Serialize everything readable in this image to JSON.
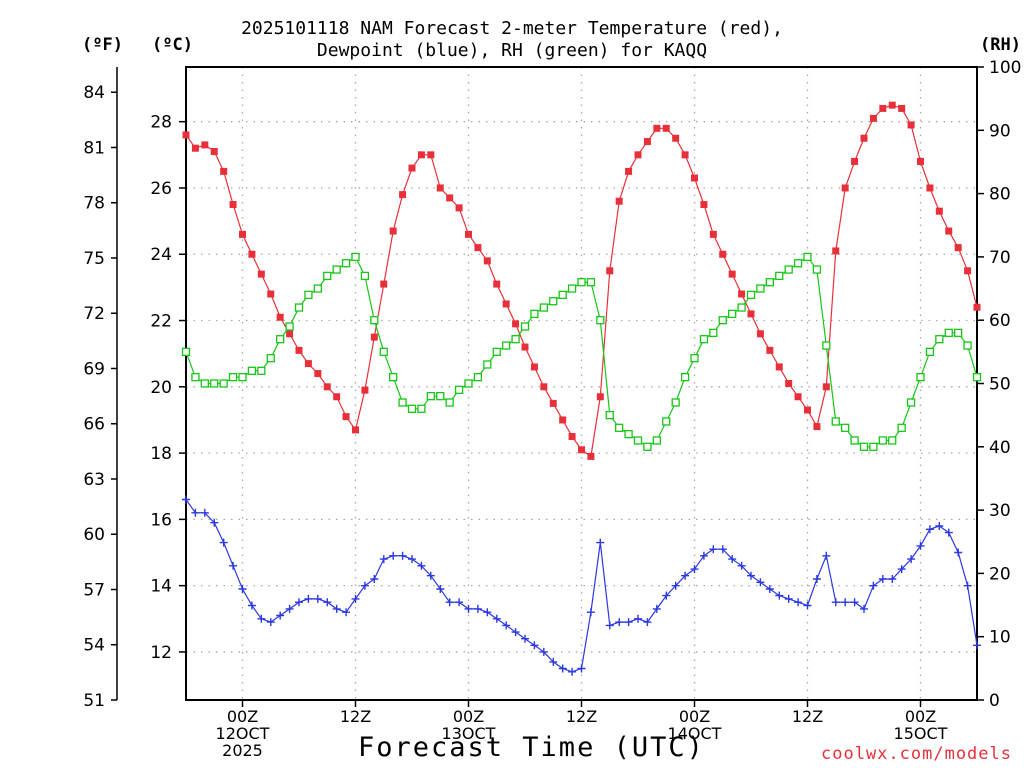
{
  "chart_data": {
    "type": "line",
    "title_lines": [
      "2025101118 NAM Forecast 2-meter Temperature (red),",
      "Dewpoint (blue), RH (green) for KAQQ"
    ],
    "xlabel": "Forecast Time (UTC)",
    "units": {
      "fahrenheit": "(ºF)",
      "celsius": "(ºC)",
      "rh": "(RH)"
    },
    "x_unit": "hours from 2025-10-11 18Z",
    "xlim": [
      0,
      84
    ],
    "x_ticks": [
      {
        "hour": 6,
        "lines": [
          "00Z",
          "12OCT",
          "2025"
        ]
      },
      {
        "hour": 18,
        "lines": [
          "12Z"
        ]
      },
      {
        "hour": 30,
        "lines": [
          "00Z",
          "13OCT"
        ]
      },
      {
        "hour": 42,
        "lines": [
          "12Z"
        ]
      },
      {
        "hour": 54,
        "lines": [
          "00Z",
          "14OCT"
        ]
      },
      {
        "hour": 66,
        "lines": [
          "12Z"
        ]
      },
      {
        "hour": 78,
        "lines": [
          "00Z",
          "15OCT"
        ]
      }
    ],
    "celsius_axis": {
      "ylim": [
        10.55,
        29.65
      ],
      "ticks": [
        12,
        14,
        16,
        18,
        20,
        22,
        24,
        26,
        28
      ]
    },
    "fahrenheit_axis": {
      "ylim": [
        51,
        85.37
      ],
      "ticks": [
        51,
        54,
        57,
        60,
        63,
        66,
        69,
        72,
        75,
        78,
        81,
        84
      ]
    },
    "rh_axis": {
      "ylim": [
        0,
        100
      ],
      "ticks": [
        0,
        10,
        20,
        30,
        40,
        50,
        60,
        70,
        80,
        90,
        100
      ]
    },
    "grid": true,
    "series": [
      {
        "name": "2-meter Temperature",
        "axis": "celsius",
        "color": "#e8303a",
        "marker": "filled-square",
        "hours": [
          0,
          1,
          2,
          3,
          4,
          5,
          6,
          7,
          8,
          9,
          10,
          11,
          12,
          13,
          14,
          15,
          16,
          17,
          18,
          19,
          20,
          21,
          22,
          23,
          24,
          25,
          26,
          27,
          28,
          29,
          30,
          31,
          32,
          33,
          34,
          35,
          36,
          37,
          38,
          39,
          40,
          41,
          42,
          43,
          44,
          45,
          46,
          47,
          48,
          49,
          50,
          51,
          52,
          53,
          54,
          55,
          56,
          57,
          58,
          59,
          60,
          61,
          62,
          63,
          64,
          65,
          66,
          67,
          68,
          69,
          70,
          71,
          72,
          73,
          74,
          75,
          76,
          77,
          78,
          79,
          80,
          81,
          82,
          83,
          84
        ],
        "values": [
          27.6,
          27.2,
          27.3,
          27.1,
          26.5,
          25.5,
          24.6,
          24.0,
          23.4,
          22.8,
          22.1,
          21.6,
          21.1,
          20.7,
          20.4,
          20.0,
          19.7,
          19.1,
          18.7,
          19.9,
          21.5,
          23.1,
          24.7,
          25.8,
          26.6,
          27.0,
          27.0,
          26.0,
          25.7,
          25.4,
          24.6,
          24.2,
          23.8,
          23.1,
          22.5,
          21.9,
          21.2,
          20.6,
          20.0,
          19.5,
          19.0,
          18.5,
          18.1,
          17.9,
          19.7,
          23.5,
          25.6,
          26.5,
          27.0,
          27.4,
          27.8,
          27.8,
          27.5,
          27.0,
          26.3,
          25.5,
          24.6,
          24.0,
          23.4,
          22.8,
          22.2,
          21.6,
          21.1,
          20.6,
          20.1,
          19.7,
          19.3,
          18.8,
          20.0,
          24.1,
          26.0,
          26.8,
          27.5,
          28.1,
          28.4,
          28.5,
          28.4,
          27.9,
          26.8,
          26.0,
          25.3,
          24.7,
          24.2,
          23.5,
          22.4
        ]
      },
      {
        "name": "Dewpoint",
        "axis": "celsius",
        "color": "#2c38e0",
        "marker": "plus",
        "hours": [
          0,
          1,
          2,
          3,
          4,
          5,
          6,
          7,
          8,
          9,
          10,
          11,
          12,
          13,
          14,
          15,
          16,
          17,
          18,
          19,
          20,
          21,
          22,
          23,
          24,
          25,
          26,
          27,
          28,
          29,
          30,
          31,
          32,
          33,
          34,
          35,
          36,
          37,
          38,
          39,
          40,
          41,
          42,
          43,
          44,
          45,
          46,
          47,
          48,
          49,
          50,
          51,
          52,
          53,
          54,
          55,
          56,
          57,
          58,
          59,
          60,
          61,
          62,
          63,
          64,
          65,
          66,
          67,
          68,
          69,
          70,
          71,
          72,
          73,
          74,
          75,
          76,
          77,
          78,
          79,
          80,
          81,
          82,
          83,
          84
        ],
        "values": [
          16.6,
          16.2,
          16.2,
          15.9,
          15.3,
          14.6,
          13.9,
          13.4,
          13.0,
          12.9,
          13.1,
          13.3,
          13.5,
          13.6,
          13.6,
          13.5,
          13.3,
          13.2,
          13.6,
          14.0,
          14.2,
          14.8,
          14.9,
          14.9,
          14.8,
          14.6,
          14.3,
          13.9,
          13.5,
          13.5,
          13.3,
          13.3,
          13.2,
          13.0,
          12.8,
          12.6,
          12.4,
          12.2,
          12.0,
          11.7,
          11.5,
          11.4,
          11.5,
          13.2,
          15.3,
          12.8,
          12.9,
          12.9,
          13.0,
          12.9,
          13.3,
          13.7,
          14.0,
          14.3,
          14.5,
          14.9,
          15.1,
          15.1,
          14.8,
          14.6,
          14.3,
          14.1,
          13.9,
          13.7,
          13.6,
          13.5,
          13.4,
          14.2,
          14.9,
          13.5,
          13.5,
          13.5,
          13.3,
          14.0,
          14.2,
          14.2,
          14.5,
          14.8,
          15.2,
          15.7,
          15.8,
          15.6,
          15.0,
          14.0,
          12.2
        ]
      },
      {
        "name": "Relative Humidity",
        "axis": "rh",
        "color": "#17c617",
        "marker": "open-square",
        "hours": [
          0,
          1,
          2,
          3,
          4,
          5,
          6,
          7,
          8,
          9,
          10,
          11,
          12,
          13,
          14,
          15,
          16,
          17,
          18,
          19,
          20,
          21,
          22,
          23,
          24,
          25,
          26,
          27,
          28,
          29,
          30,
          31,
          32,
          33,
          34,
          35,
          36,
          37,
          38,
          39,
          40,
          41,
          42,
          43,
          44,
          45,
          46,
          47,
          48,
          49,
          50,
          51,
          52,
          53,
          54,
          55,
          56,
          57,
          58,
          59,
          60,
          61,
          62,
          63,
          64,
          65,
          66,
          67,
          68,
          69,
          70,
          71,
          72,
          73,
          74,
          75,
          76,
          77,
          78,
          79,
          80,
          81,
          82,
          83,
          84
        ],
        "values": [
          55,
          51,
          50,
          50,
          50,
          51,
          51,
          52,
          52,
          54,
          57,
          59,
          62,
          64,
          65,
          67,
          68,
          69,
          70,
          67,
          60,
          55,
          51,
          47,
          46,
          46,
          48,
          48,
          47,
          49,
          50,
          51,
          53,
          55,
          56,
          57,
          59,
          61,
          62,
          63,
          64,
          65,
          66,
          66,
          60,
          45,
          43,
          42,
          41,
          40,
          41,
          44,
          47,
          51,
          54,
          57,
          58,
          60,
          61,
          62,
          64,
          65,
          66,
          67,
          68,
          69,
          70,
          68,
          56,
          44,
          43,
          41,
          40,
          40,
          41,
          41,
          43,
          47,
          51,
          55,
          57,
          58,
          58,
          56,
          51
        ]
      }
    ]
  }
}
